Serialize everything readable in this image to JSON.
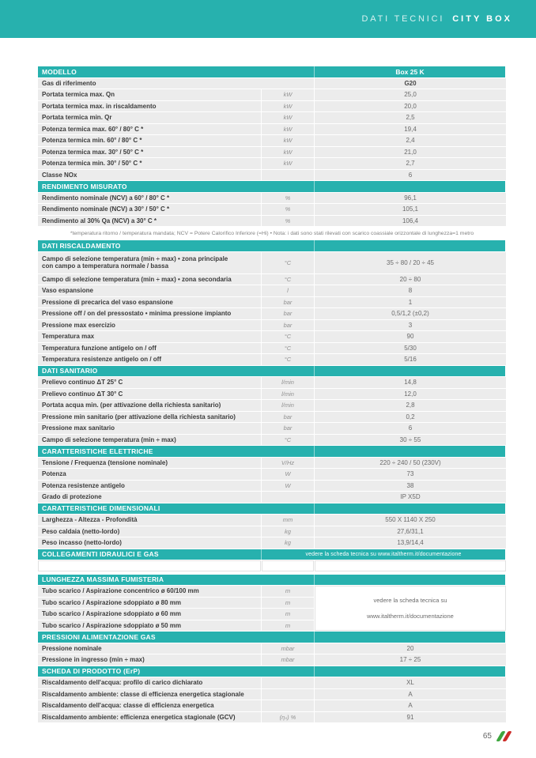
{
  "header": {
    "title_regular": "DATI TECNICI",
    "title_bold": "CITY BOX"
  },
  "footer": {
    "page_number": "65",
    "logo_icon": "italtherm-flag-icon"
  },
  "colors": {
    "teal": "#27b1ae",
    "row_bg": "#ececec",
    "label_text": "#3b3b3b",
    "value_text": "#6a6a6a",
    "logo_green": "#3da63e",
    "logo_red": "#cc2b28"
  },
  "table": {
    "sections": [
      {
        "header": "MODELLO",
        "header_value": "Box 25 K",
        "rows": [
          {
            "label": "Gas di riferimento",
            "merge_unit": true,
            "value": "G20",
            "value_bold": true
          },
          {
            "label": "Portata termica max. Qn",
            "unit": "kW",
            "value": "25,0"
          },
          {
            "label": "Portata termica max. in riscaldamento",
            "unit": "kW",
            "value": "20,0"
          },
          {
            "label": "Portata termica min. Qr",
            "unit": "kW",
            "value": "2,5"
          },
          {
            "label": "Potenza termica max. 60° / 80° C *",
            "unit": "kW",
            "value": "19,4"
          },
          {
            "label": "Potenza termica min. 60° / 80° C *",
            "unit": "kW",
            "value": "2,4"
          },
          {
            "label": "Potenza termica max. 30° / 50° C *",
            "unit": "kW",
            "value": "21,0"
          },
          {
            "label": "Potenza termica min. 30° / 50° C *",
            "unit": "kW",
            "value": "2,7"
          },
          {
            "label": "Classe NOx",
            "unit": "",
            "value": "6"
          }
        ]
      },
      {
        "header": "RENDIMENTO MISURATO",
        "rows": [
          {
            "label": "Rendimento nominale (NCV) a 60° / 80° C *",
            "unit": "%",
            "value": "96,1"
          },
          {
            "label": "Rendimento nominale (NCV) a 30° / 50° C *",
            "unit": "%",
            "value": "105,1"
          },
          {
            "label": "Rendimento al 30% Qa (NCV) a 30° C *",
            "unit": "%",
            "value": "106,4"
          }
        ],
        "footnote": "*temperatura ritorno / temperatura mandata; NCV = Potere Calorifico Inferiore (=Hi) • Nota: i dati sono stati rilevati con scarico coassiale orizzontale di lunghezza=1 metro"
      },
      {
        "header": "DATI RISCALDAMENTO",
        "rows": [
          {
            "label": "Campo di selezione temperatura (min ÷ max) • zona principale",
            "label2": "con campo a temperatura normale / bassa",
            "unit": "°C",
            "value": "35 ÷ 80 / 20 ÷ 45"
          },
          {
            "label": "Campo di selezione temperatura (min ÷ max) • zona secondaria",
            "unit": "°C",
            "value": "20 ÷ 80"
          },
          {
            "label": "Vaso espansione",
            "unit": "l",
            "value": "8"
          },
          {
            "label": "Pressione di precarica del vaso espansione",
            "unit": "bar",
            "value": "1"
          },
          {
            "label": "Pressione off / on del pressostato • minima pressione impianto",
            "unit": "bar",
            "value": "0,5/1,2 (±0,2)"
          },
          {
            "label": "Pressione max esercizio",
            "unit": "bar",
            "value": "3"
          },
          {
            "label": "Temperatura max",
            "unit": "°C",
            "value": "90"
          },
          {
            "label": "Temperatura funzione antigelo on / off",
            "unit": "°C",
            "value": "5/30"
          },
          {
            "label": "Temperatura resistenze antigelo on / off",
            "unit": "°C",
            "value": "5/16"
          }
        ]
      },
      {
        "header": "DATI SANITARIO",
        "rows": [
          {
            "label": "Prelievo continuo ΔT 25° C",
            "unit": "l/min",
            "value": "14,8"
          },
          {
            "label": "Prelievo continuo ΔT 30° C",
            "unit": "l/min",
            "value": "12,0"
          },
          {
            "label": "Portata acqua min. (per attivazione della richiesta sanitario)",
            "unit": "l/min",
            "value": "2,8"
          },
          {
            "label": "Pressione min sanitario (per attivazione della richiesta sanitario)",
            "unit": "bar",
            "value": "0,2"
          },
          {
            "label": "Pressione max sanitario",
            "unit": "bar",
            "value": "6"
          },
          {
            "label": "Campo di selezione temperatura (min ÷ max)",
            "unit": "°C",
            "value": "30 ÷ 55"
          }
        ]
      },
      {
        "header": "CARATTERISTICHE ELETTRICHE",
        "rows": [
          {
            "label": "Tensione / Frequenza (tensione nominale)",
            "unit": "V/Hz",
            "value": "220 ÷ 240 / 50 (230V)"
          },
          {
            "label": "Potenza",
            "unit": "W",
            "value": "73"
          },
          {
            "label": "Potenza resistenze antigelo",
            "unit": "W",
            "value": "38"
          },
          {
            "label": "Grado di protezione",
            "unit": "",
            "value": "IP X5D"
          }
        ]
      },
      {
        "header": "CARATTERISTICHE DIMENSIONALI",
        "rows": [
          {
            "label": "Larghezza - Altezza - Profondità",
            "unit": "mm",
            "value": "550 X 1140 X 250"
          },
          {
            "label": "Peso caldaia (netto-lordo)",
            "unit": "kg",
            "value": "27,6/31,1"
          },
          {
            "label": "Peso incasso (netto-lordo)",
            "unit": "kg",
            "value": "13,9/14,4"
          }
        ]
      },
      {
        "header": "COLLEGAMENTI IDRAULICI E GAS",
        "header_value": "vedere la scheda tecnica su www.italtherm.it/documentazione",
        "header_value_wide": true,
        "rows": [],
        "empty_row": true
      },
      {
        "header": "LUNGHEZZA MASSIMA FUMISTERIA",
        "gap_before": true,
        "merged_value_lines": [
          "vedere la scheda tecnica su",
          "www.italtherm.it/documentazione"
        ],
        "rows": [
          {
            "label": "Tubo scarico / Aspirazione concentrico ø 60/100 mm",
            "unit": "m"
          },
          {
            "label": "Tubo scarico / Aspirazione sdoppiato ø 80 mm",
            "unit": "m"
          },
          {
            "label": "Tubo scarico / Aspirazione sdoppiato ø 60 mm",
            "unit": "m"
          },
          {
            "label": "Tubo scarico / Aspirazione sdoppiato ø 50 mm",
            "unit": "m"
          }
        ]
      },
      {
        "header": "PRESSIONI ALIMENTAZIONE GAS",
        "rows": [
          {
            "label": "Pressione nominale",
            "unit": "mbar",
            "value": "20"
          },
          {
            "label": "Pressione in ingresso (min ÷ max)",
            "unit": "mbar",
            "value": "17 ÷ 25"
          }
        ]
      },
      {
        "header": "SCHEDA DI PRODOTTO (ErP)",
        "rows": [
          {
            "label": "Riscaldamento dell'acqua: profilo di carico dichiarato",
            "unit": "",
            "value": "XL"
          },
          {
            "label": "Riscaldamento ambiente: classe di efficienza energetica stagionale",
            "unit": "",
            "value": "A"
          },
          {
            "label": "Riscaldamento dell'acqua: classe di efficienza energetica",
            "unit": "",
            "value": "A"
          },
          {
            "label": "Riscaldamento ambiente: efficienza energetica stagionale (GCV)",
            "unit": "(ηₛ) %",
            "value": "91"
          }
        ]
      }
    ]
  }
}
